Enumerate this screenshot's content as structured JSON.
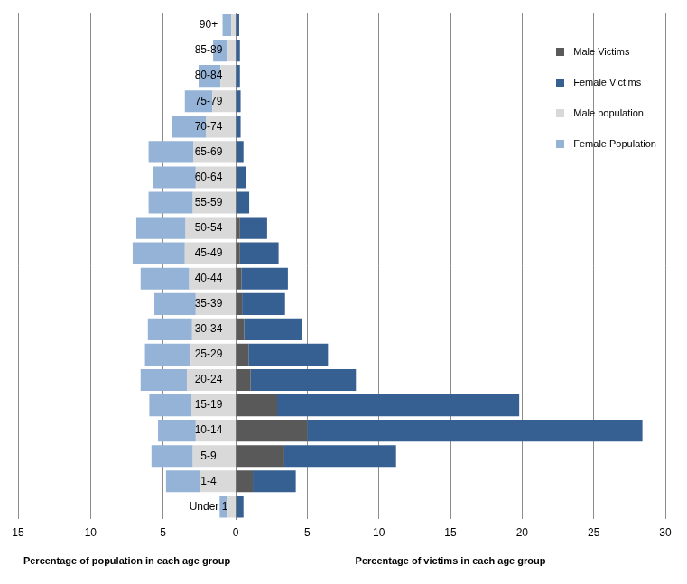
{
  "chart_data": [
    {
      "type": "bar",
      "orientation": "horizontal",
      "stacked": true,
      "grid": true,
      "xlabel": "Percentage of population in each age group",
      "categories": [
        "90+",
        "85-89",
        "80-84",
        "75-79",
        "70-74",
        "65-69",
        "60-64",
        "55-59",
        "50-54",
        "45-49",
        "40-44",
        "35-39",
        "30-34",
        "25-29",
        "20-24",
        "15-19",
        "10-14",
        "5-9",
        "1-4",
        "Under 1"
      ],
      "series": [
        {
          "name": "Male population",
          "color": "#d9d9d9",
          "values": [
            0.3,
            0.55,
            1.05,
            1.6,
            2.05,
            2.9,
            2.75,
            2.95,
            3.45,
            3.5,
            3.2,
            2.75,
            3.0,
            3.1,
            3.35,
            3.05,
            2.75,
            2.95,
            2.45,
            0.55
          ]
        },
        {
          "name": "Female Population",
          "color": "#95b3d7",
          "values": [
            0.6,
            1.0,
            1.5,
            1.9,
            2.35,
            3.1,
            2.95,
            3.05,
            3.4,
            3.6,
            3.35,
            2.85,
            3.05,
            3.15,
            3.2,
            2.9,
            2.6,
            2.85,
            2.35,
            0.55
          ]
        }
      ],
      "xlim": [
        15,
        0
      ],
      "xticks": [
        15,
        10,
        5
      ]
    },
    {
      "type": "bar",
      "orientation": "horizontal",
      "stacked": true,
      "grid": true,
      "tick_labels": "x",
      "legend": "upper right",
      "xlabel": "Percentage of victims in each age group",
      "categories": [
        "90+",
        "85-89",
        "80-84",
        "75-79",
        "70-74",
        "65-69",
        "60-64",
        "55-59",
        "50-54",
        "45-49",
        "40-44",
        "35-39",
        "30-34",
        "25-29",
        "20-24",
        "15-19",
        "10-14",
        "5-9",
        "1-4",
        "Under 1"
      ],
      "series": [
        {
          "name": "Male Victims",
          "color": "#595959",
          "values": [
            0,
            0,
            0,
            0,
            0,
            0.05,
            0.05,
            0.05,
            0.3,
            0.3,
            0.4,
            0.45,
            0.6,
            0.9,
            1.05,
            2.9,
            5.0,
            3.4,
            1.2,
            0.05
          ]
        },
        {
          "name": "Female Victims",
          "color": "#376092",
          "values": [
            0.25,
            0.3,
            0.3,
            0.35,
            0.35,
            0.5,
            0.7,
            0.9,
            1.9,
            2.7,
            3.25,
            3.0,
            4.0,
            5.55,
            7.35,
            16.9,
            23.4,
            7.8,
            3.0,
            0.5
          ]
        }
      ],
      "xlim": [
        0,
        30
      ],
      "xticks": [
        0,
        5,
        10,
        15,
        20,
        25,
        30
      ]
    }
  ]
}
